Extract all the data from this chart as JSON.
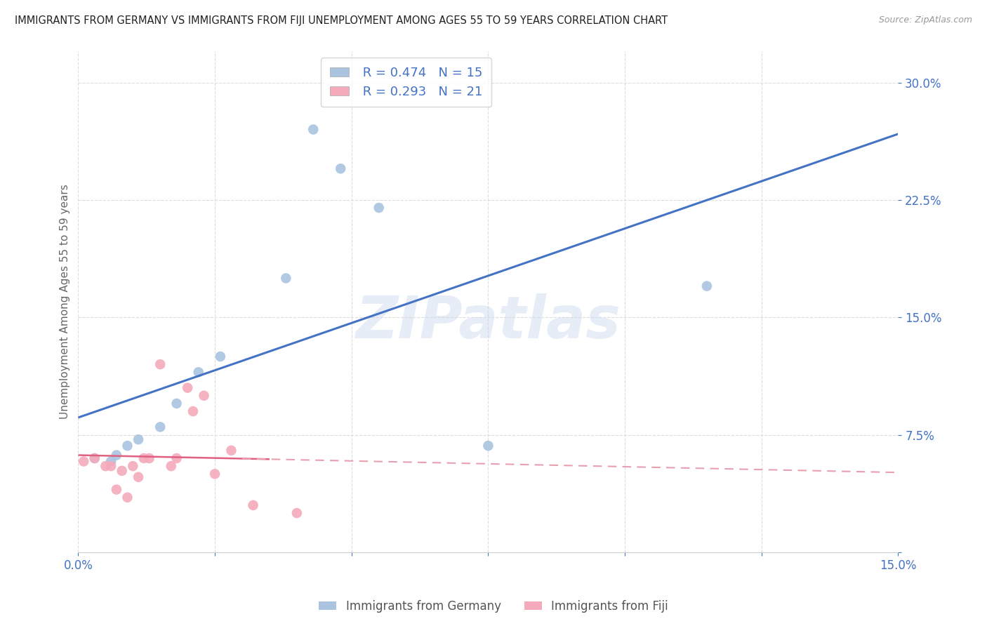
{
  "title": "IMMIGRANTS FROM GERMANY VS IMMIGRANTS FROM FIJI UNEMPLOYMENT AMONG AGES 55 TO 59 YEARS CORRELATION CHART",
  "source": "Source: ZipAtlas.com",
  "ylabel": "Unemployment Among Ages 55 to 59 years",
  "xlim": [
    0.0,
    0.15
  ],
  "ylim": [
    0.0,
    0.32
  ],
  "xticks": [
    0.0,
    0.025,
    0.05,
    0.075,
    0.1,
    0.125,
    0.15
  ],
  "xticklabels": [
    "0.0%",
    "",
    "",
    "",
    "",
    "",
    "15.0%"
  ],
  "yticks": [
    0.0,
    0.075,
    0.15,
    0.225,
    0.3
  ],
  "yticklabels": [
    "",
    "7.5%",
    "15.0%",
    "22.5%",
    "30.0%"
  ],
  "germany_x": [
    0.003,
    0.006,
    0.007,
    0.009,
    0.011,
    0.015,
    0.018,
    0.022,
    0.026,
    0.038,
    0.043,
    0.048,
    0.055,
    0.075,
    0.115
  ],
  "germany_y": [
    0.06,
    0.058,
    0.062,
    0.068,
    0.072,
    0.08,
    0.095,
    0.115,
    0.125,
    0.175,
    0.27,
    0.245,
    0.22,
    0.068,
    0.17
  ],
  "fiji_x": [
    0.001,
    0.003,
    0.005,
    0.006,
    0.007,
    0.008,
    0.009,
    0.01,
    0.011,
    0.012,
    0.013,
    0.015,
    0.017,
    0.018,
    0.02,
    0.021,
    0.023,
    0.025,
    0.028,
    0.032,
    0.04
  ],
  "fiji_y": [
    0.058,
    0.06,
    0.055,
    0.055,
    0.04,
    0.052,
    0.035,
    0.055,
    0.048,
    0.06,
    0.06,
    0.12,
    0.055,
    0.06,
    0.105,
    0.09,
    0.1,
    0.05,
    0.065,
    0.03,
    0.025
  ],
  "germany_color": "#aac4e0",
  "fiji_color": "#f4aabb",
  "germany_line_color": "#4472c4",
  "fiji_solid_color": "#e06080",
  "fiji_dash_color": "#e8a0b0",
  "germany_R": 0.474,
  "germany_N": 15,
  "fiji_R": 0.293,
  "fiji_N": 21,
  "legend_label_germany": "Immigrants from Germany",
  "legend_label_fiji": "Immigrants from Fiji",
  "watermark_text": "ZIPatlas",
  "background_color": "#ffffff",
  "grid_color": "#dddddd",
  "marker_size": 110,
  "axis_color": "#4472c4",
  "title_fontsize": 10.5,
  "label_fontsize": 11
}
